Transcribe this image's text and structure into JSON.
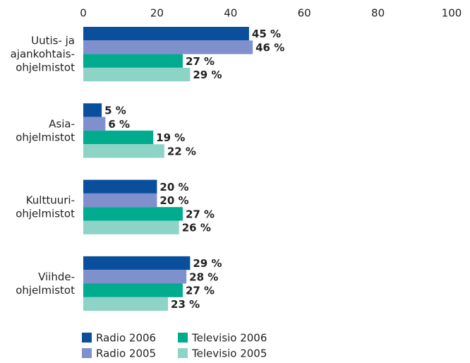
{
  "chart_data": {
    "type": "bar",
    "orientation": "horizontal",
    "categories": [
      "Uutis- ja\najankohtais-\nohjelmistot",
      "Asia-\nohjelmistot",
      "Kulttuuri-\nohjelmistot",
      "Viihde-\nohjelmistot"
    ],
    "series": [
      {
        "name": "Radio 2006",
        "color": "#0a4f9c",
        "values": [
          45,
          5,
          20,
          29
        ],
        "value_labels": [
          "45 %",
          "5 %",
          "20 %",
          "29 %"
        ]
      },
      {
        "name": "Radio 2005",
        "color": "#8090cc",
        "values": [
          46,
          6,
          20,
          28
        ],
        "value_labels": [
          "46 %",
          "6 %",
          "20 %",
          "28 %"
        ]
      },
      {
        "name": "Televisio 2006",
        "color": "#00ab8e",
        "values": [
          27,
          19,
          27,
          27
        ],
        "value_labels": [
          "27 %",
          "19 %",
          "27 %",
          "27 %"
        ]
      },
      {
        "name": "Televisio 2005",
        "color": "#8ed4c6",
        "values": [
          29,
          22,
          26,
          23
        ],
        "value_labels": [
          "29 %",
          "22 %",
          "26 %",
          "23 %"
        ]
      }
    ],
    "xlim": [
      0,
      100
    ],
    "xticks": [
      0,
      20,
      40,
      60,
      80,
      100
    ],
    "grid": false
  }
}
